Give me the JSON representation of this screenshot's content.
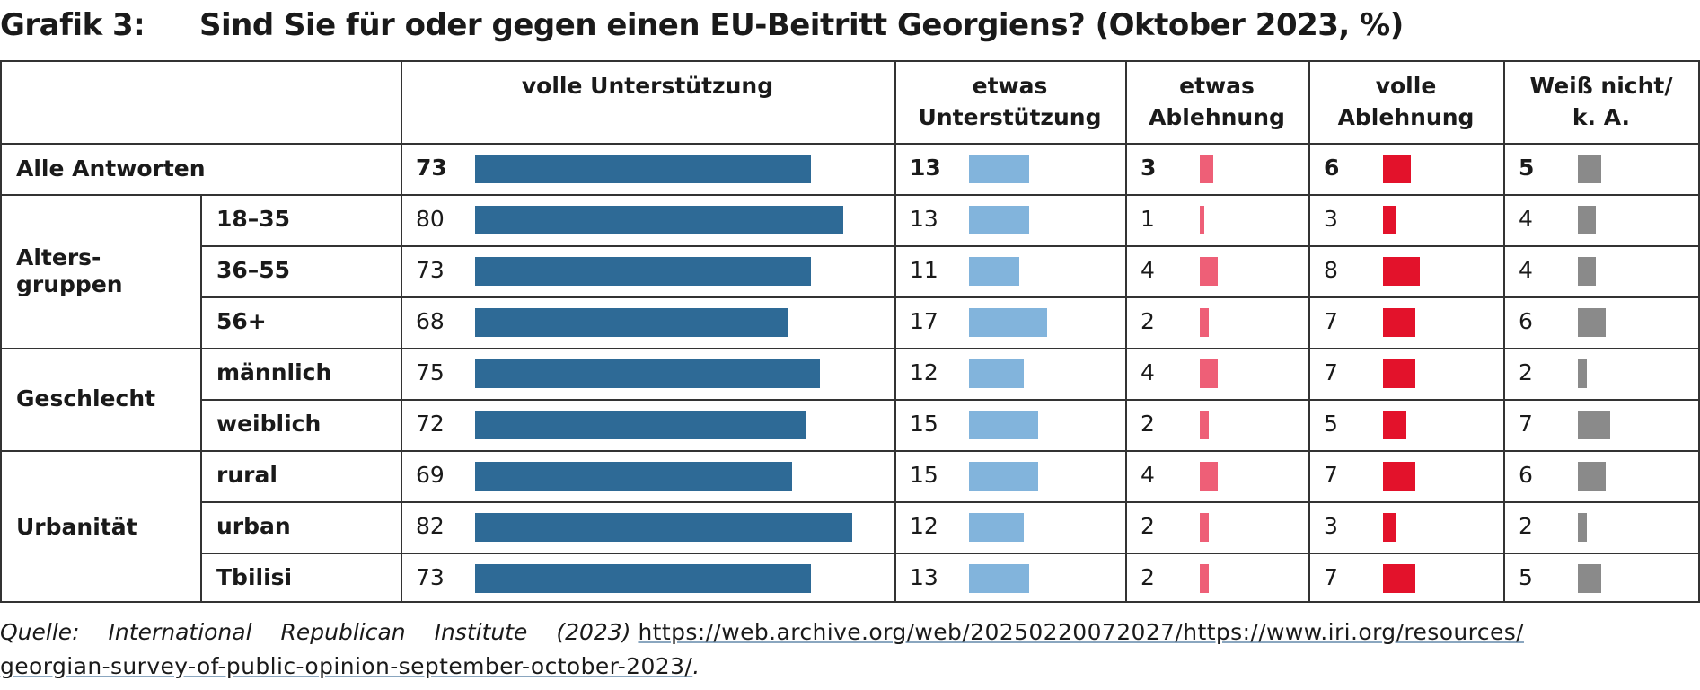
{
  "title_label": "Grafik 3:",
  "title_text": "Sind Sie für oder gegen einen EU-Beitritt Georgiens? (Oktober 2023, %)",
  "source_prefix": "Quelle: International Republican Institute (2023)",
  "source_url_line1": "https://web.archive.org/web/20250220072027/https://www.iri.org/resources/",
  "source_url_line2": "georgian-survey-of-public-opinion-september-october-2023/",
  "source_suffix": ".",
  "colors": {
    "volle_unterstuetzung": "#2e6a96",
    "etwas_unterstuetzung": "#82b4dc",
    "etwas_ablehnung": "#ee5f77",
    "volle_ablehnung": "#e3122b",
    "weiss_nicht": "#8a8a8a"
  },
  "chart_data": {
    "type": "bar",
    "title": "Sind Sie für oder gegen einen EU-Beitritt Georgiens? (Oktober 2023, %)",
    "series": [
      {
        "name": "volle Unterstützung",
        "values": [
          73,
          80,
          73,
          68,
          75,
          72,
          69,
          82,
          73
        ]
      },
      {
        "name": "etwas\nUnterstützung",
        "values": [
          13,
          13,
          11,
          17,
          12,
          15,
          15,
          12,
          13
        ]
      },
      {
        "name": "etwas\nAblehnung",
        "values": [
          3,
          1,
          4,
          2,
          4,
          2,
          4,
          2,
          2
        ]
      },
      {
        "name": "volle\nAblehnung",
        "values": [
          6,
          3,
          8,
          7,
          7,
          5,
          7,
          3,
          7
        ]
      },
      {
        "name": "Weiß nicht/\nk. A.",
        "values": [
          5,
          4,
          4,
          6,
          2,
          7,
          6,
          2,
          5
        ]
      }
    ],
    "groups": [
      {
        "label": "Alle Antworten",
        "rows": [
          0
        ]
      },
      {
        "label": "Alters-\ngruppen",
        "rows": [
          1,
          2,
          3
        ]
      },
      {
        "label": "Geschlecht",
        "rows": [
          4,
          5
        ]
      },
      {
        "label": "Urbanität",
        "rows": [
          6,
          7,
          8
        ]
      }
    ],
    "categories": [
      "",
      "18–35",
      "36–55",
      "56+",
      "männlich",
      "weiblich",
      "rural",
      "urban",
      "Tbilisi"
    ]
  }
}
